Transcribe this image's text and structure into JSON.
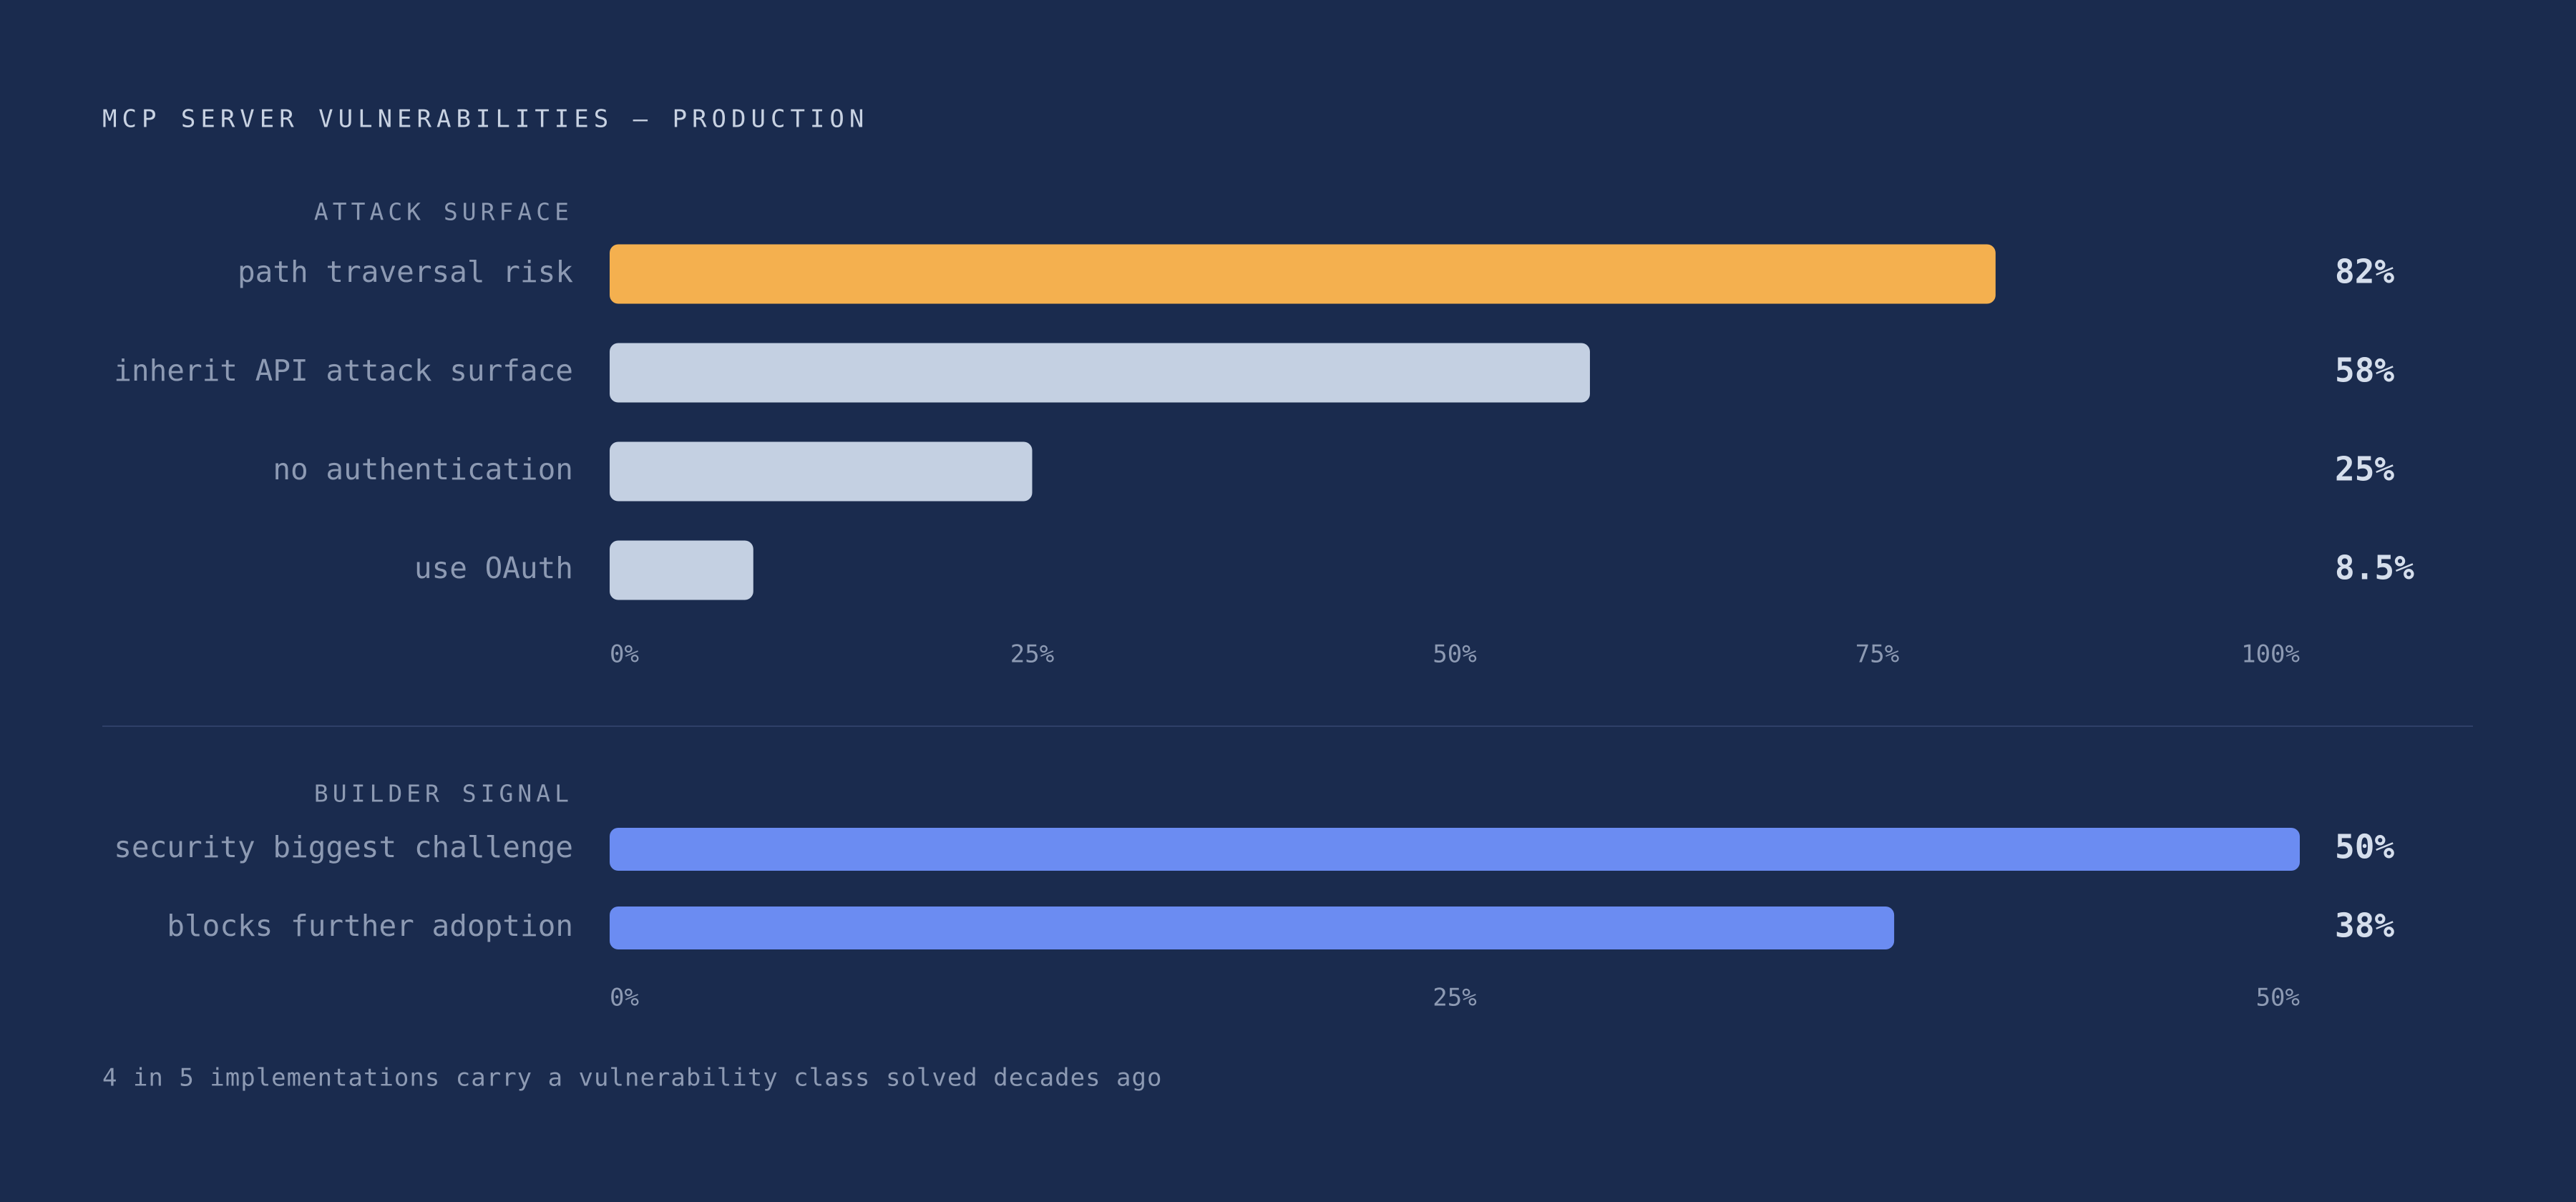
{
  "title": "MCP SERVER VULNERABILITIES — PRODUCTION",
  "chart_data": [
    {
      "type": "bar",
      "orientation": "horizontal",
      "title": "ATTACK SURFACE",
      "categories": [
        "path traversal risk",
        "inherit API attack surface",
        "no authentication",
        "use OAuth"
      ],
      "values": [
        82,
        58,
        25,
        8.5
      ],
      "value_labels": [
        "82%",
        "58%",
        "25%",
        "8.5%"
      ],
      "colors": [
        "#f4b04f",
        "#c4d0e2",
        "#c4d0e2",
        "#c4d0e2"
      ],
      "highlight": 0,
      "xlim": [
        0,
        100
      ],
      "xticks": [
        {
          "value": 0,
          "label": "0%"
        },
        {
          "value": 25,
          "label": "25%"
        },
        {
          "value": 50,
          "label": "50%"
        },
        {
          "value": 75,
          "label": "75%"
        },
        {
          "value": 100,
          "label": "100%"
        }
      ]
    },
    {
      "type": "bar",
      "orientation": "horizontal",
      "title": "BUILDER SIGNAL",
      "categories": [
        "security biggest challenge",
        "blocks further adoption"
      ],
      "values": [
        50,
        38
      ],
      "value_labels": [
        "50%",
        "38%"
      ],
      "colors": [
        "#6b8cf2",
        "#6b8cf2"
      ],
      "xlim": [
        0,
        50
      ],
      "xticks": [
        {
          "value": 0,
          "label": "0%"
        },
        {
          "value": 25,
          "label": "25%"
        },
        {
          "value": 50,
          "label": "50%"
        }
      ]
    }
  ],
  "footnote": "4 in 5 implementations carry a vulnerability class solved decades ago"
}
